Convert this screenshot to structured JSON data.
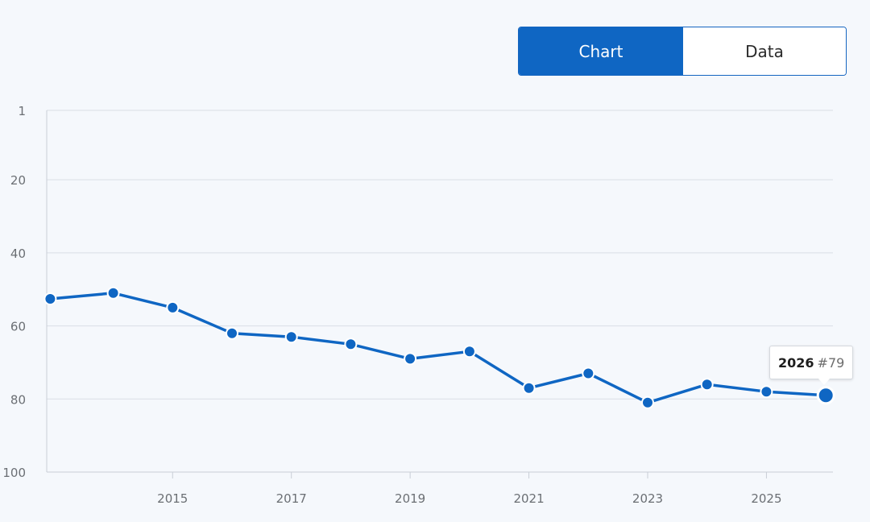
{
  "view_toggle": {
    "chart_label": "Chart",
    "data_label": "Data",
    "selected": "Chart"
  },
  "colors": {
    "series": "#0f66c3",
    "grid": "#d9dee5",
    "axis_text": "#6b6f74",
    "background": "#f5f8fc"
  },
  "tooltip": {
    "year": "2026",
    "rank": "#79"
  },
  "chart_data": {
    "type": "line",
    "title": "",
    "xlabel": "",
    "ylabel": "",
    "y_inverted": true,
    "ylim": [
      1,
      100
    ],
    "y_ticks": [
      1,
      20,
      40,
      60,
      80,
      100
    ],
    "xlim": [
      2012.88,
      2026.12
    ],
    "x_ticks": [
      2015,
      2017,
      2019,
      2021,
      2023,
      2025
    ],
    "grid": "horizontal",
    "series": [
      {
        "x": [
          2012,
          2014,
          2015,
          2016,
          2017,
          2018,
          2019,
          2020,
          2021,
          2022,
          2023,
          2024,
          2025,
          2026
        ],
        "values": [
          54,
          51,
          55,
          62,
          63,
          65,
          69,
          67,
          77,
          73,
          81,
          76,
          78,
          79
        ]
      }
    ],
    "highlighted_point": {
      "x": 2026,
      "value": 79
    }
  }
}
